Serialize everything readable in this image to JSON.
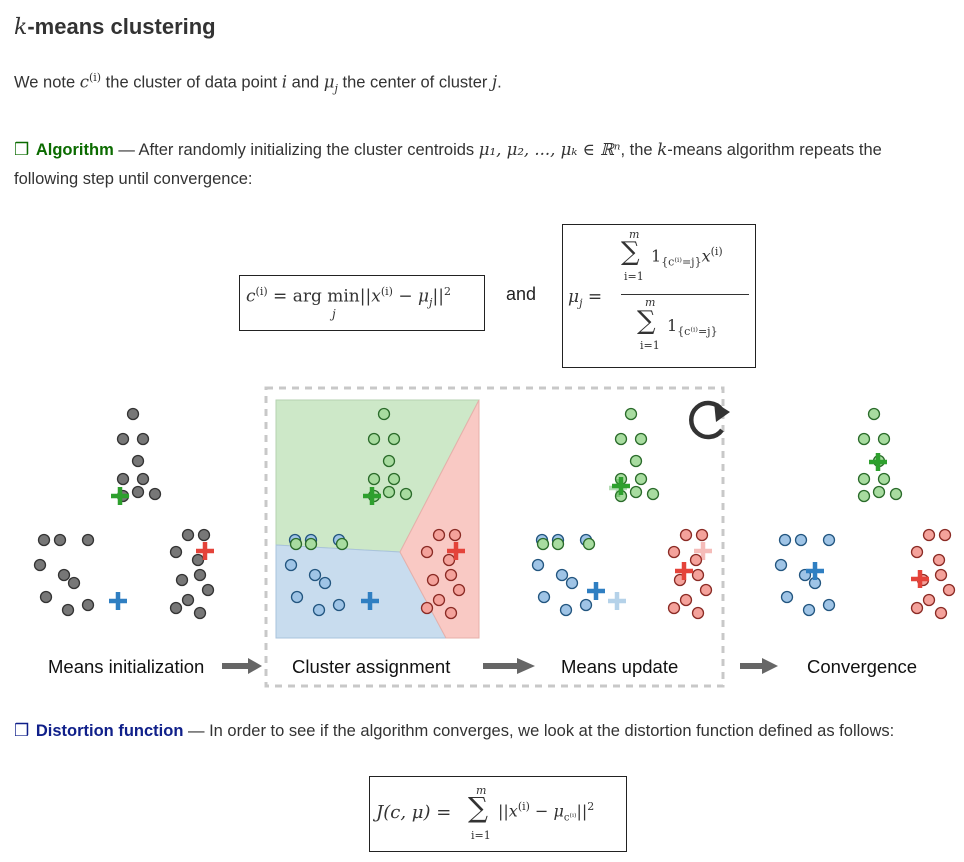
{
  "title": {
    "k": "k",
    "rest": "-means clustering"
  },
  "intro": {
    "t1": "We note ",
    "c": "c",
    "c_sup": "(i)",
    "t2": " the cluster of data point ",
    "i": "i",
    "t3": " and ",
    "mu": "μ",
    "mu_sub": "j",
    "t4": " the center of cluster ",
    "j": "j",
    "t5": "."
  },
  "algorithm": {
    "indicator": "❒",
    "header": "Algorithm",
    "dash": " — After randomly initializing the cluster centroids ",
    "centroids": "μ₁, μ₂, ..., μₖ ∈ ℝⁿ",
    "middle": ", the ",
    "k": "k",
    "rest_line1": "-means algorithm repeats the",
    "line2": "following step until convergence:"
  },
  "eq1": {
    "c": "c",
    "sup": "(i)",
    "eq": " = arg min",
    "norm_open": "||",
    "x": "x",
    "x_sup": "(i)",
    "minus": " − ",
    "mu": "μ",
    "mu_sub": "j",
    "norm_close": "||",
    "pow": "2",
    "sub_j": "j"
  },
  "and_text": "and",
  "eq2": {
    "lhs": "μ",
    "lhs_sub": "j",
    "eq": " = ",
    "sum_top": "m",
    "sum_bot": "i=1",
    "sigma": "∑",
    "num_one": "1",
    "num_sub": "{c⁽ⁱ⁾=j}",
    "num_x": "x",
    "num_x_sup": "(i)",
    "den_one": "1",
    "den_sub": "{c⁽ⁱ⁾=j}"
  },
  "steps": {
    "s1": "Means initialization",
    "s2": "Cluster assignment",
    "s3": "Means update",
    "s4": "Convergence"
  },
  "distortion": {
    "indicator": "❒",
    "header": "Distortion function",
    "text": " — In order to see if the algorithm converges, we look at the distortion function defined as follows:"
  },
  "eq3": {
    "lhs": "J(c, μ) = ",
    "sigma": "∑",
    "top": "m",
    "bot": "i=1",
    "norm_open": "||",
    "x": "x",
    "x_sup": "(i)",
    "minus": " − ",
    "mu": "μ",
    "mu_sub": "c⁽ⁱ⁾",
    "norm_close": "||",
    "pow": "2"
  },
  "colors": {
    "green_region": "#cde8c8",
    "blue_region": "#c8dcee",
    "red_region": "#f9c9c4",
    "green": "#2ea02e",
    "blue": "#2f7fc2",
    "red": "#e4433a",
    "gray": "#666666",
    "algo_header": "#0b6b00",
    "dist_header": "#10208a"
  },
  "icons": {
    "cycle": "circular-arrow-icon",
    "arrow": "right-arrow-icon",
    "indicator": "checkbox-square-icon"
  }
}
